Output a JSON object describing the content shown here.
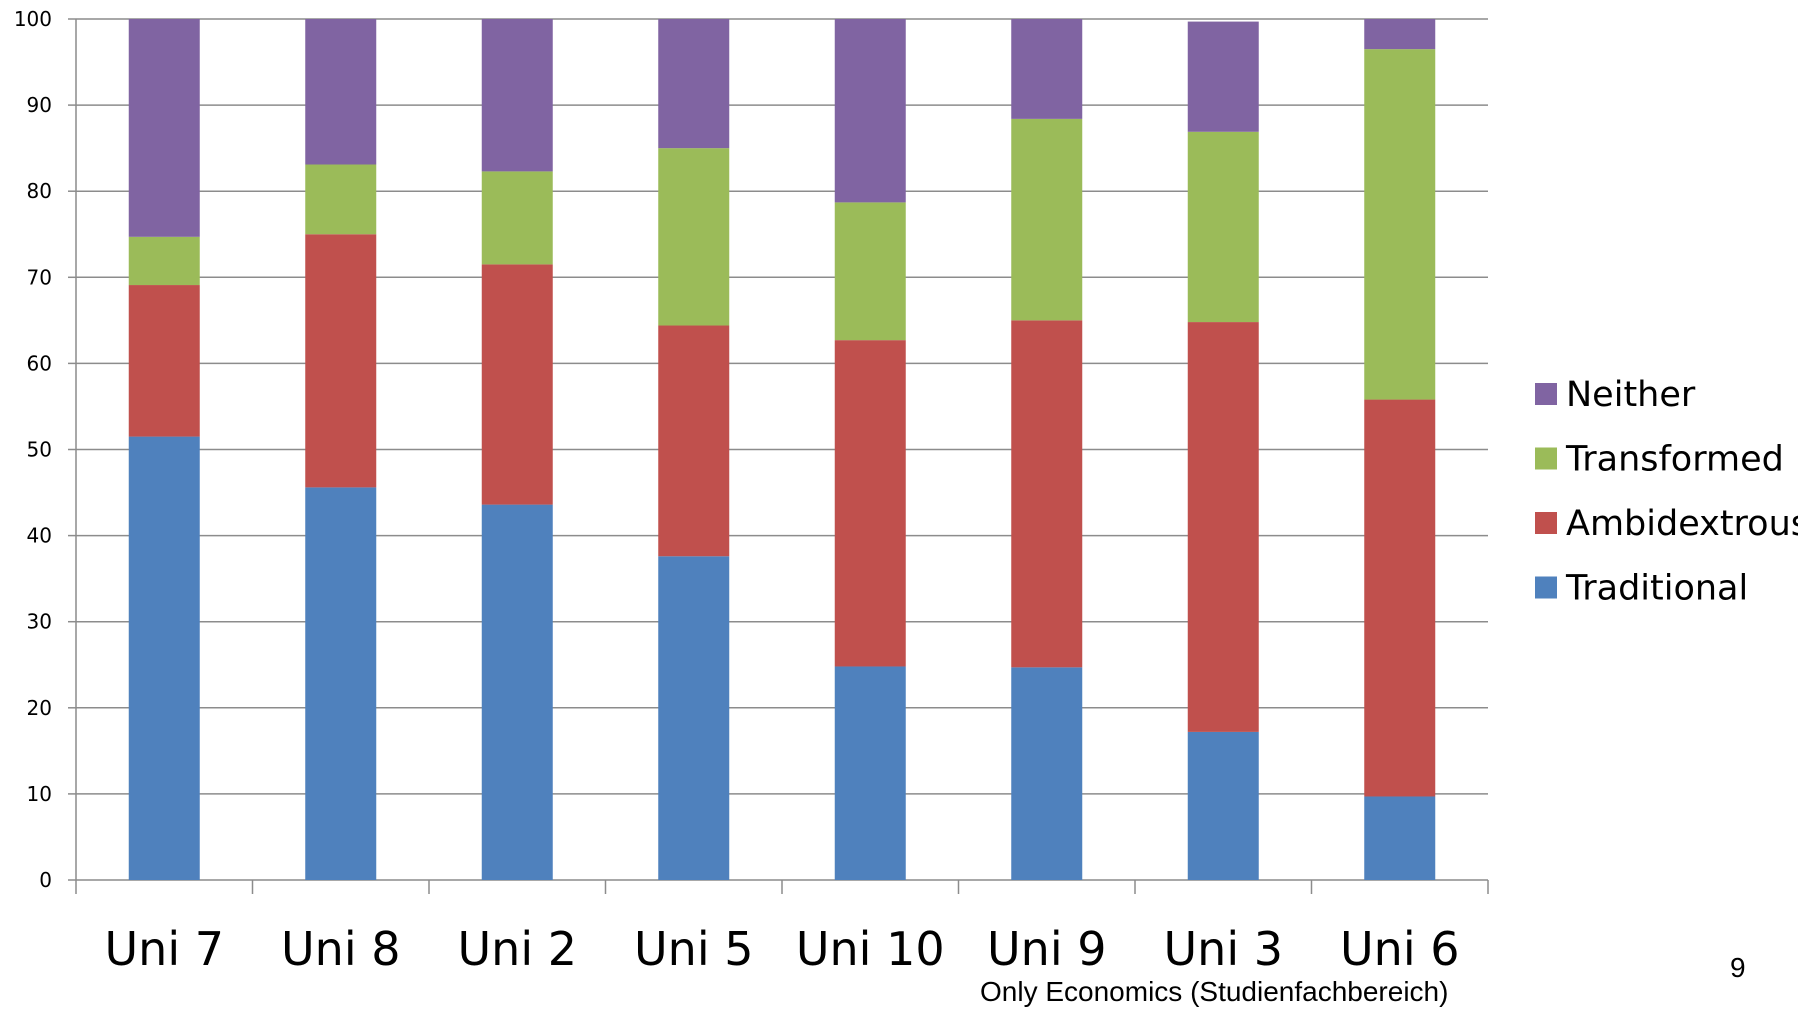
{
  "chart_data": {
    "type": "bar",
    "stacked": true,
    "categories": [
      "Uni 7",
      "Uni 8",
      "Uni 2",
      "Uni 5",
      "Uni 10",
      "Uni 9",
      "Uni 3",
      "Uni 6"
    ],
    "series": [
      {
        "name": "Traditional",
        "color": "#4F81BD",
        "values": [
          51.5,
          45.6,
          43.6,
          37.6,
          24.8,
          24.7,
          17.2,
          9.7
        ]
      },
      {
        "name": "Ambidextrous",
        "color": "#C0504D",
        "values": [
          17.6,
          29.4,
          27.9,
          26.8,
          37.9,
          40.3,
          47.6,
          46.1
        ]
      },
      {
        "name": "Transformed",
        "color": "#9BBB59",
        "values": [
          5.6,
          8.1,
          10.8,
          20.6,
          16.0,
          23.4,
          22.1,
          40.7
        ]
      },
      {
        "name": "Neither",
        "color": "#8064A2",
        "values": [
          25.3,
          16.9,
          17.7,
          15.0,
          21.3,
          11.6,
          12.8,
          3.5
        ]
      }
    ],
    "ylim": [
      0,
      100
    ],
    "yticks": [
      0,
      10,
      20,
      30,
      40,
      50,
      60,
      70,
      80,
      90,
      100
    ],
    "grid": true,
    "legend": {
      "placement": "right",
      "order": [
        "Neither",
        "Transformed",
        "Ambidextrous",
        "Traditional"
      ]
    }
  },
  "footnote": "Only Economics (Studienfachbereich)",
  "page_number": "9"
}
